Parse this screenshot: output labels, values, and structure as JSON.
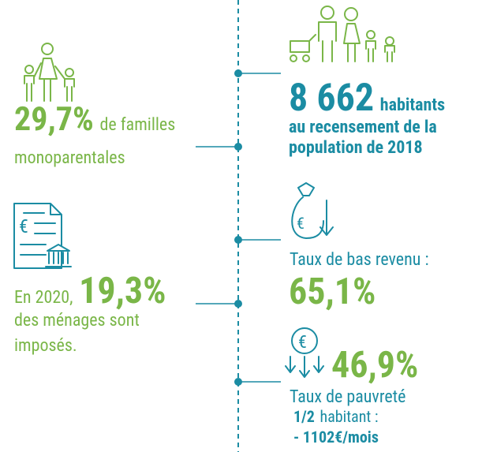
{
  "left": {
    "families": {
      "value": "29,7%",
      "text": "de familles",
      "text2": "monoparentales"
    },
    "taxes": {
      "prefix": "En 2020,",
      "value": "19,3%",
      "text": "des ménages sont",
      "text2": "imposés."
    }
  },
  "right": {
    "population": {
      "value": "8 662",
      "unit": "habitants",
      "text": "au recensement de la",
      "text2": "population de 2018"
    },
    "low_income": {
      "label": "Taux de bas revenu :",
      "value": "65,1%"
    },
    "poverty": {
      "value": "46,9%",
      "label": "Taux de pauvreté",
      "share": "1/2",
      "share_text": "habitant :",
      "amount": "- 1102€/mois"
    }
  }
}
